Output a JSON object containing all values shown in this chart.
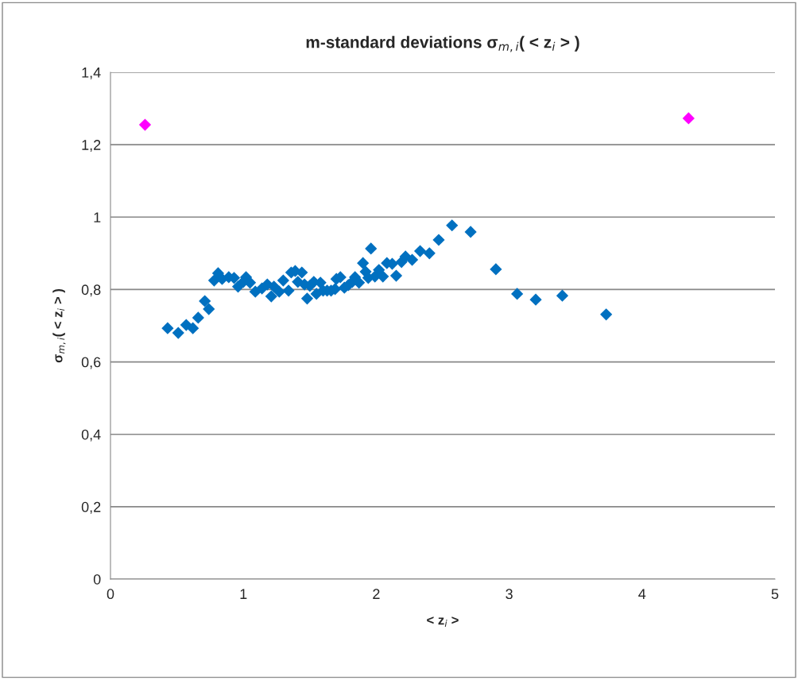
{
  "chart_data": {
    "type": "scatter",
    "title": "m-standard deviations σ$_{m,i}$( < z$_{i}$ > )",
    "xlabel": "< z$_{i}$ >",
    "ylabel": "σ$_{m,i}$( < z$_{i}$ > )",
    "series": [
      {
        "color": "#0070c0",
        "x": [
          0.43,
          0.51,
          0.57,
          0.62,
          0.66,
          0.71,
          0.74,
          0.78,
          0.81,
          0.84,
          0.89,
          0.93,
          0.96,
          1.0,
          1.02,
          1.05,
          1.09,
          1.14,
          1.18,
          1.21,
          1.23,
          1.27,
          1.3,
          1.34,
          1.36,
          1.39,
          1.41,
          1.44,
          1.46,
          1.48,
          1.5,
          1.53,
          1.55,
          1.58,
          1.6,
          1.63,
          1.66,
          1.69,
          1.7,
          1.73,
          1.76,
          1.79,
          1.82,
          1.84,
          1.87,
          1.9,
          1.92,
          1.94,
          1.96,
          1.99,
          2.02,
          2.05,
          2.08,
          2.12,
          2.15,
          2.19,
          2.22,
          2.27,
          2.33,
          2.4,
          2.47,
          2.57,
          2.71,
          2.9,
          3.06,
          3.2,
          3.4,
          3.73
        ],
        "values": [
          0.693,
          0.68,
          0.702,
          0.693,
          0.722,
          0.768,
          0.746,
          0.825,
          0.845,
          0.829,
          0.834,
          0.832,
          0.808,
          0.821,
          0.834,
          0.819,
          0.794,
          0.803,
          0.814,
          0.781,
          0.808,
          0.794,
          0.825,
          0.797,
          0.847,
          0.851,
          0.821,
          0.847,
          0.814,
          0.775,
          0.81,
          0.821,
          0.788,
          0.819,
          0.797,
          0.797,
          0.797,
          0.801,
          0.829,
          0.834,
          0.805,
          0.812,
          0.821,
          0.834,
          0.819,
          0.873,
          0.849,
          0.832,
          0.913,
          0.836,
          0.854,
          0.836,
          0.873,
          0.871,
          0.838,
          0.876,
          0.891,
          0.882,
          0.906,
          0.9,
          0.937,
          0.977,
          0.959,
          0.856,
          0.788,
          0.772,
          0.783,
          0.731
        ]
      },
      {
        "color": "#ff00ff",
        "x": [
          0.26,
          4.35
        ],
        "values": [
          1.255,
          1.273
        ]
      }
    ],
    "xlim": [
      0,
      5
    ],
    "xticks": [
      0,
      1,
      2,
      3,
      4,
      5
    ],
    "ylim": [
      0,
      1.4
    ],
    "yticks": [
      0,
      {
        "value": 0.2,
        "label": "0,2"
      },
      {
        "value": 0.4,
        "label": "0,4"
      },
      {
        "value": 0.6,
        "label": "0,6"
      },
      {
        "value": 0.8,
        "label": "0,8"
      },
      1,
      {
        "value": 1.2,
        "label": "1,2"
      },
      {
        "value": 1.4,
        "label": "1,4"
      }
    ],
    "grid": "y",
    "marker": "diamond",
    "legend": false
  }
}
